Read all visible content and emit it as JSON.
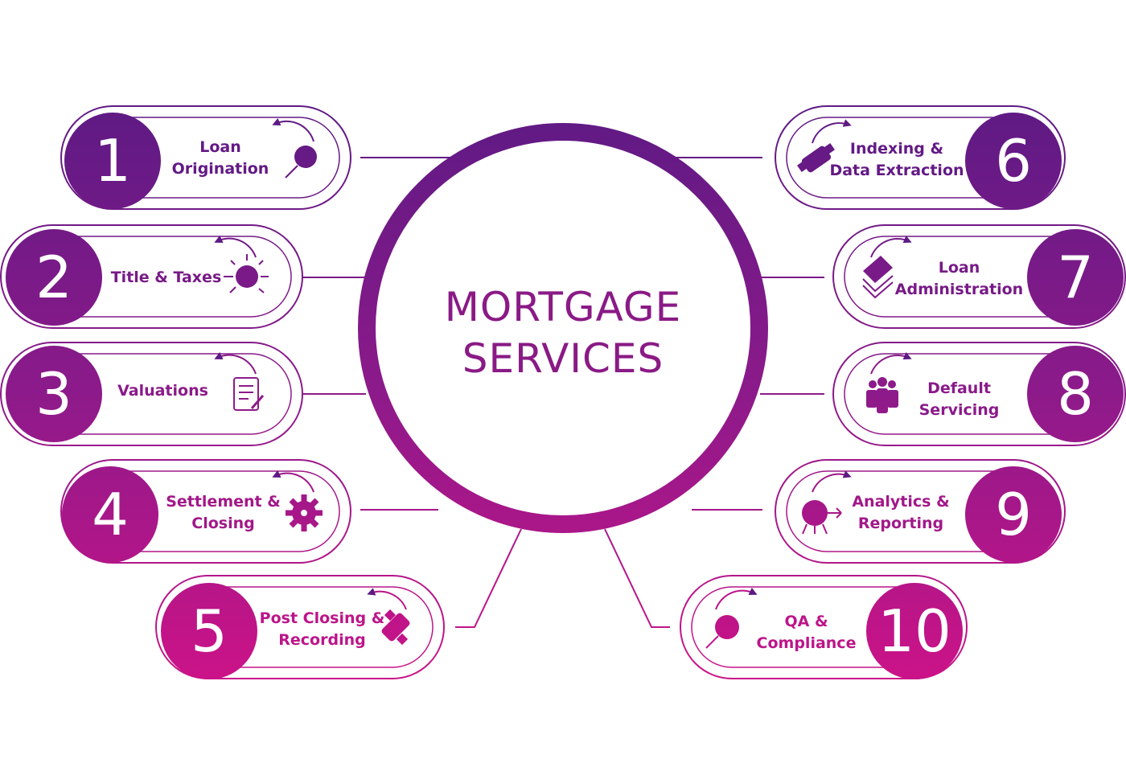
{
  "center": {
    "line1": "MORTGAGE",
    "line2": "SERVICES"
  },
  "colors": {
    "top": "#5e1a84",
    "mid": "#8d1a8a",
    "bottom": "#cc1388"
  },
  "services": [
    {
      "number": "1",
      "label1": "Loan",
      "label2": "Origination",
      "icon": "magnifier-icon"
    },
    {
      "number": "2",
      "label1": "Title & Taxes",
      "label2": "",
      "icon": "lightbulb-icon"
    },
    {
      "number": "3",
      "label1": "Valuations",
      "label2": "",
      "icon": "document-edit-icon"
    },
    {
      "number": "4",
      "label1": "Settlement &",
      "label2": "Closing",
      "icon": "gear-icon"
    },
    {
      "number": "5",
      "label1": "Post Closing &",
      "label2": "Recording",
      "icon": "handshake-icon"
    },
    {
      "number": "6",
      "label1": "Indexing &",
      "label2": "Data Extraction",
      "icon": "handshake-icon"
    },
    {
      "number": "7",
      "label1": "Loan",
      "label2": "Administration",
      "icon": "stack-layers-icon"
    },
    {
      "number": "8",
      "label1": "Default",
      "label2": "Servicing",
      "icon": "team-icon"
    },
    {
      "number": "9",
      "label1": "Analytics &",
      "label2": "Reporting",
      "icon": "target-icon"
    },
    {
      "number": "10",
      "label1": "QA &",
      "label2": "Compliance",
      "icon": "magnifier-icon"
    }
  ]
}
